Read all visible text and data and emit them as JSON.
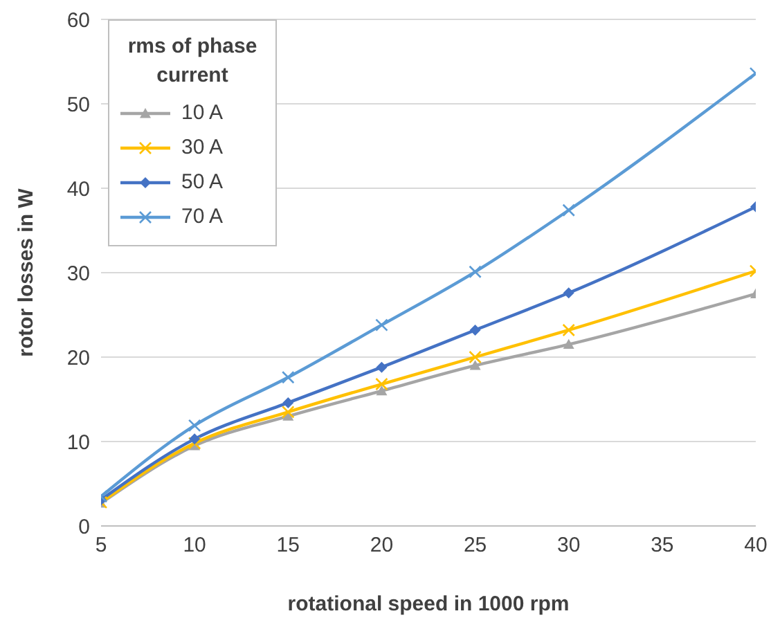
{
  "chart_data": {
    "type": "line",
    "xlabel": "rotational speed in 1000 rpm",
    "ylabel": "rotor losses in W",
    "legend_title": "rms of phase current",
    "x": [
      5,
      10,
      15,
      20,
      25,
      30,
      40
    ],
    "xlim": [
      5,
      40
    ],
    "xticks": [
      5,
      10,
      15,
      20,
      25,
      30,
      35,
      40
    ],
    "ylim": [
      0,
      60
    ],
    "yticks": [
      0,
      10,
      20,
      30,
      40,
      50,
      60
    ],
    "grid": "y",
    "legend": "top left",
    "series": [
      {
        "name": "10 A",
        "color": "#a5a5a5",
        "marker": "triangle",
        "values": [
          2.7,
          9.5,
          13,
          16,
          19,
          21.5,
          27.5
        ]
      },
      {
        "name": "30 A",
        "color": "#ffc000",
        "marker": "cross",
        "values": [
          2.8,
          9.8,
          13.5,
          16.8,
          20,
          23.2,
          30.2
        ]
      },
      {
        "name": "50 A",
        "color": "#4472c4",
        "marker": "diamond",
        "values": [
          3.1,
          10.3,
          14.6,
          18.8,
          23.2,
          27.6,
          37.8
        ]
      },
      {
        "name": "70 A",
        "color": "#5b9bd5",
        "marker": "cross",
        "values": [
          3.5,
          11.9,
          17.6,
          23.8,
          30.1,
          37.4,
          53.6
        ]
      }
    ]
  }
}
